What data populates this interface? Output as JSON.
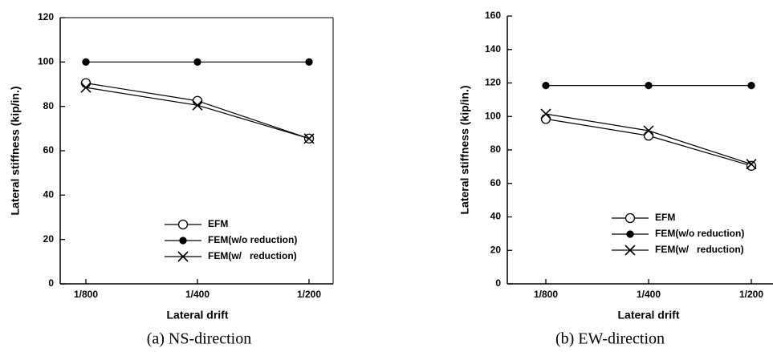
{
  "chart_data": [
    {
      "type": "line",
      "caption": "(a) NS-direction",
      "xlabel": "Lateral drift",
      "ylabel": "Lateral stiffness (kip/in.)",
      "categories": [
        "1/800",
        "1/400",
        "1/200"
      ],
      "ylim": [
        0,
        120
      ],
      "yticks": [
        0,
        20,
        40,
        60,
        80,
        100,
        120
      ],
      "series": [
        {
          "name": "EFM",
          "color": "#000000",
          "marker": "circle-open",
          "values": [
            90.5,
            82.5,
            65.5
          ]
        },
        {
          "name": "FEM(w/o reduction)",
          "color": "#000000",
          "marker": "circle",
          "values": [
            100,
            100,
            100
          ]
        },
        {
          "name": "FEM(w/   reduction)",
          "color": "#000000",
          "marker": "x",
          "values": [
            88.5,
            80.5,
            65.5
          ]
        }
      ]
    },
    {
      "type": "line",
      "caption": "(b) EW-direction",
      "xlabel": "Lateral drift",
      "ylabel": "Lateral stiffness (kip/in.)",
      "categories": [
        "1/800",
        "1/400",
        "1/200"
      ],
      "ylim": [
        0,
        160
      ],
      "yticks": [
        0,
        20,
        40,
        60,
        80,
        100,
        120,
        140,
        160
      ],
      "series": [
        {
          "name": "EFM",
          "color": "#000000",
          "marker": "circle-open",
          "values": [
            98.5,
            88.5,
            70.5
          ]
        },
        {
          "name": "FEM(w/o reduction)",
          "color": "#000000",
          "marker": "circle",
          "values": [
            118.5,
            118.5,
            118.5
          ]
        },
        {
          "name": "FEM(w/   reduction)",
          "color": "#000000",
          "marker": "x",
          "values": [
            101.5,
            91.5,
            71.5
          ]
        }
      ]
    }
  ]
}
